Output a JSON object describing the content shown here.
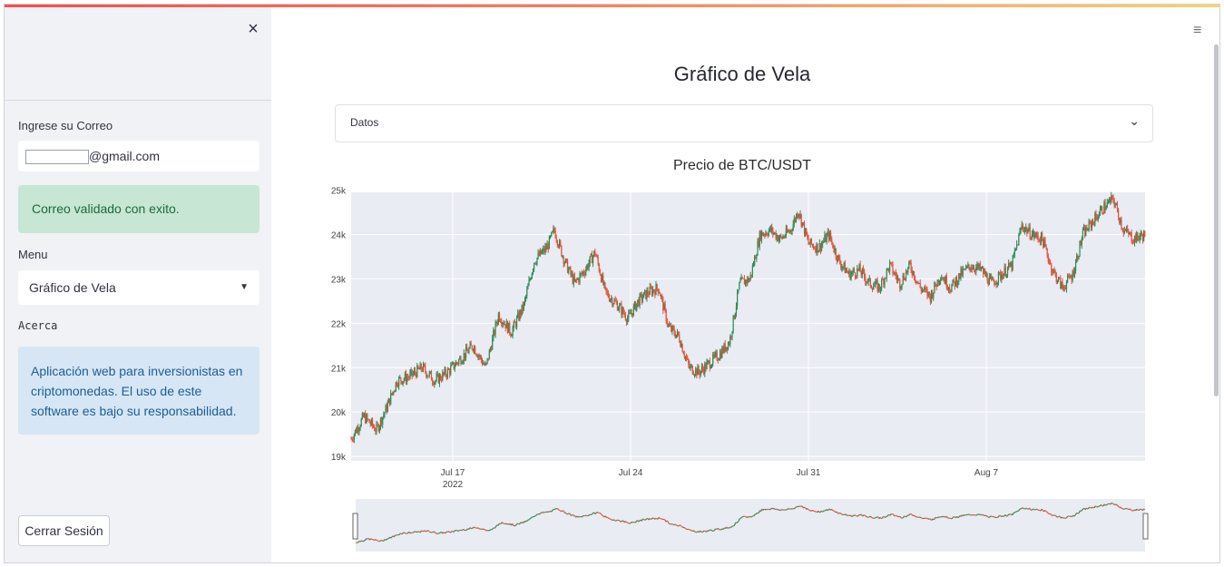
{
  "sidebar": {
    "close_icon": "×",
    "email_label": "Ingrese su Correo",
    "email_value": "@gmail.com",
    "success_message": "Correo validado con exito.",
    "menu_label": "Menu",
    "menu_selected": "Gráfico de Vela",
    "about_label": "Acerca",
    "about_text": "Aplicación web para inversionistas en criptomonedas. El uso de este software es bajo su responsabilidad.",
    "logout_label": "Cerrar Sesión"
  },
  "header": {
    "menu_icon": "≡"
  },
  "main": {
    "title": "Gráfico de Vela",
    "expander_label": "Datos",
    "expander_icon": "⌄"
  },
  "colors": {
    "increasing": "#2e8b57",
    "decreasing": "#e8503a",
    "plot_bg": "#e9ecf2"
  },
  "chart_data": {
    "type": "candlestick",
    "title": "Precio de BTC/USDT",
    "ylim": [
      18900,
      24950
    ],
    "yticks": [
      19000,
      20000,
      21000,
      22000,
      23000,
      24000,
      25000
    ],
    "ytick_labels": [
      "19k",
      "20k",
      "21k",
      "22k",
      "23k",
      "24k",
      "25k"
    ],
    "xlim_days": [
      0,
      31.25
    ],
    "xticks": [
      {
        "day": 4,
        "label": "Jul 17",
        "sublabel": "2022"
      },
      {
        "day": 11,
        "label": "Jul 24",
        "sublabel": ""
      },
      {
        "day": 18,
        "label": "Jul 31",
        "sublabel": ""
      },
      {
        "day": 25,
        "label": "Aug 7",
        "sublabel": ""
      }
    ],
    "rangeslider": true,
    "series": [
      {
        "day": 0.0,
        "close": 19400
      },
      {
        "day": 0.5,
        "close": 19900
      },
      {
        "day": 1.0,
        "close": 19600
      },
      {
        "day": 1.4,
        "close": 20100
      },
      {
        "day": 1.8,
        "close": 20700
      },
      {
        "day": 2.3,
        "close": 20800
      },
      {
        "day": 2.8,
        "close": 21000
      },
      {
        "day": 3.3,
        "close": 20700
      },
      {
        "day": 3.8,
        "close": 20900
      },
      {
        "day": 4.3,
        "close": 21200
      },
      {
        "day": 4.8,
        "close": 21500
      },
      {
        "day": 5.3,
        "close": 21000
      },
      {
        "day": 5.8,
        "close": 22200
      },
      {
        "day": 6.3,
        "close": 21800
      },
      {
        "day": 6.8,
        "close": 22400
      },
      {
        "day": 7.2,
        "close": 23400
      },
      {
        "day": 7.7,
        "close": 23700
      },
      {
        "day": 8.0,
        "close": 24100
      },
      {
        "day": 8.4,
        "close": 23400
      },
      {
        "day": 8.8,
        "close": 22900
      },
      {
        "day": 9.2,
        "close": 23200
      },
      {
        "day": 9.6,
        "close": 23600
      },
      {
        "day": 10.0,
        "close": 22700
      },
      {
        "day": 10.5,
        "close": 22400
      },
      {
        "day": 10.9,
        "close": 22100
      },
      {
        "day": 11.3,
        "close": 22500
      },
      {
        "day": 11.7,
        "close": 22700
      },
      {
        "day": 12.1,
        "close": 22800
      },
      {
        "day": 12.5,
        "close": 21900
      },
      {
        "day": 12.9,
        "close": 21700
      },
      {
        "day": 13.3,
        "close": 21000
      },
      {
        "day": 13.7,
        "close": 20900
      },
      {
        "day": 14.1,
        "close": 21100
      },
      {
        "day": 14.5,
        "close": 21300
      },
      {
        "day": 14.9,
        "close": 21600
      },
      {
        "day": 15.3,
        "close": 22900
      },
      {
        "day": 15.7,
        "close": 23000
      },
      {
        "day": 16.1,
        "close": 24000
      },
      {
        "day": 16.5,
        "close": 24100
      },
      {
        "day": 16.9,
        "close": 23900
      },
      {
        "day": 17.3,
        "close": 24100
      },
      {
        "day": 17.6,
        "close": 24550
      },
      {
        "day": 18.0,
        "close": 23800
      },
      {
        "day": 18.4,
        "close": 23700
      },
      {
        "day": 18.8,
        "close": 24000
      },
      {
        "day": 19.2,
        "close": 23400
      },
      {
        "day": 19.6,
        "close": 23100
      },
      {
        "day": 20.0,
        "close": 23200
      },
      {
        "day": 20.4,
        "close": 22900
      },
      {
        "day": 20.8,
        "close": 22800
      },
      {
        "day": 21.2,
        "close": 23300
      },
      {
        "day": 21.6,
        "close": 22900
      },
      {
        "day": 22.0,
        "close": 23300
      },
      {
        "day": 22.4,
        "close": 22800
      },
      {
        "day": 22.8,
        "close": 22600
      },
      {
        "day": 23.2,
        "close": 23100
      },
      {
        "day": 23.6,
        "close": 22800
      },
      {
        "day": 24.0,
        "close": 23100
      },
      {
        "day": 24.4,
        "close": 23300
      },
      {
        "day": 24.8,
        "close": 23200
      },
      {
        "day": 25.2,
        "close": 22900
      },
      {
        "day": 25.6,
        "close": 23100
      },
      {
        "day": 26.0,
        "close": 23300
      },
      {
        "day": 26.4,
        "close": 24200
      },
      {
        "day": 26.8,
        "close": 24000
      },
      {
        "day": 27.2,
        "close": 23900
      },
      {
        "day": 27.6,
        "close": 23200
      },
      {
        "day": 28.0,
        "close": 22800
      },
      {
        "day": 28.4,
        "close": 23100
      },
      {
        "day": 28.8,
        "close": 24000
      },
      {
        "day": 29.2,
        "close": 24300
      },
      {
        "day": 29.6,
        "close": 24600
      },
      {
        "day": 30.0,
        "close": 24800
      },
      {
        "day": 30.4,
        "close": 24100
      },
      {
        "day": 30.8,
        "close": 23900
      },
      {
        "day": 31.25,
        "close": 24000
      }
    ]
  }
}
